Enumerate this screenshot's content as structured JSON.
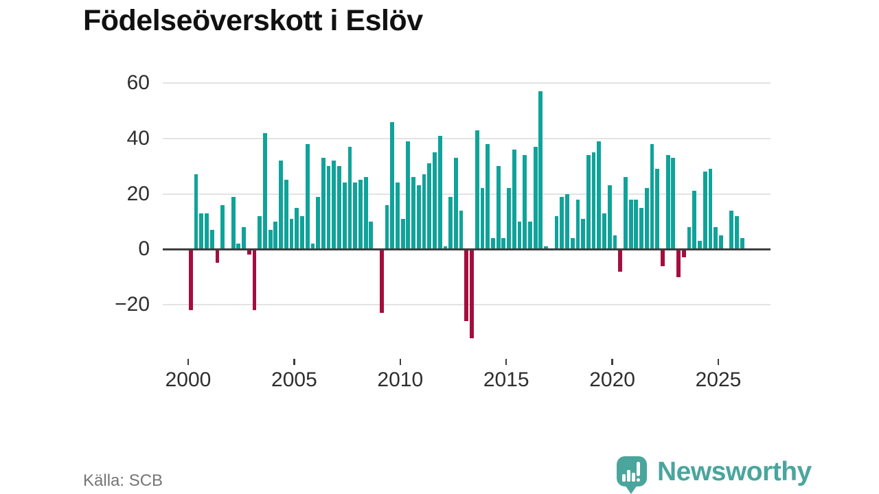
{
  "title": "Födelseöverskott i Eslöv",
  "source": "Källa: SCB",
  "logo": {
    "text": "Newsworthy",
    "icon": "bar-chart-speech-bubble"
  },
  "colors": {
    "positive_bar": "#0fa39a",
    "negative_bar": "#a40e3e",
    "gridline": "#e3e3e3",
    "axis": "#3d3d3d",
    "axis_text": "#2e2e2e",
    "title_text": "#111111",
    "source_text": "#757575",
    "logo_teal": "#4aa59d"
  },
  "chart_data": {
    "type": "bar",
    "title": "Födelseöverskott i Eslöv",
    "frequency": "quarterly",
    "start": "2000-Q1",
    "xlabel": "",
    "ylabel": "",
    "ylim": [
      -35,
      65
    ],
    "grid": true,
    "legend": false,
    "x_ticks": [
      2000,
      2005,
      2010,
      2015,
      2020,
      2025
    ],
    "y_ticks": [
      60,
      40,
      20,
      0,
      -20
    ],
    "values": [
      -22,
      27,
      13,
      13,
      7,
      -5,
      16,
      0,
      19,
      2,
      8,
      -2,
      -22,
      12,
      42,
      7,
      10,
      32,
      25,
      11,
      15,
      12,
      38,
      2,
      19,
      33,
      30,
      32,
      30,
      24,
      37,
      24,
      25,
      26,
      10,
      0,
      -23,
      16,
      46,
      24,
      11,
      39,
      26,
      23,
      27,
      31,
      35,
      41,
      1,
      19,
      33,
      14,
      -26,
      -32,
      43,
      22,
      38,
      4,
      30,
      4,
      22,
      36,
      10,
      34,
      10,
      37,
      57,
      1,
      0,
      12,
      19,
      20,
      4,
      18,
      11,
      34,
      35,
      39,
      13,
      23,
      5,
      -8,
      26,
      18,
      18,
      15,
      22,
      38,
      29,
      -6,
      34,
      33,
      -10,
      -3,
      8,
      21,
      3,
      28,
      29,
      8,
      5,
      0,
      14,
      12,
      4
    ]
  }
}
